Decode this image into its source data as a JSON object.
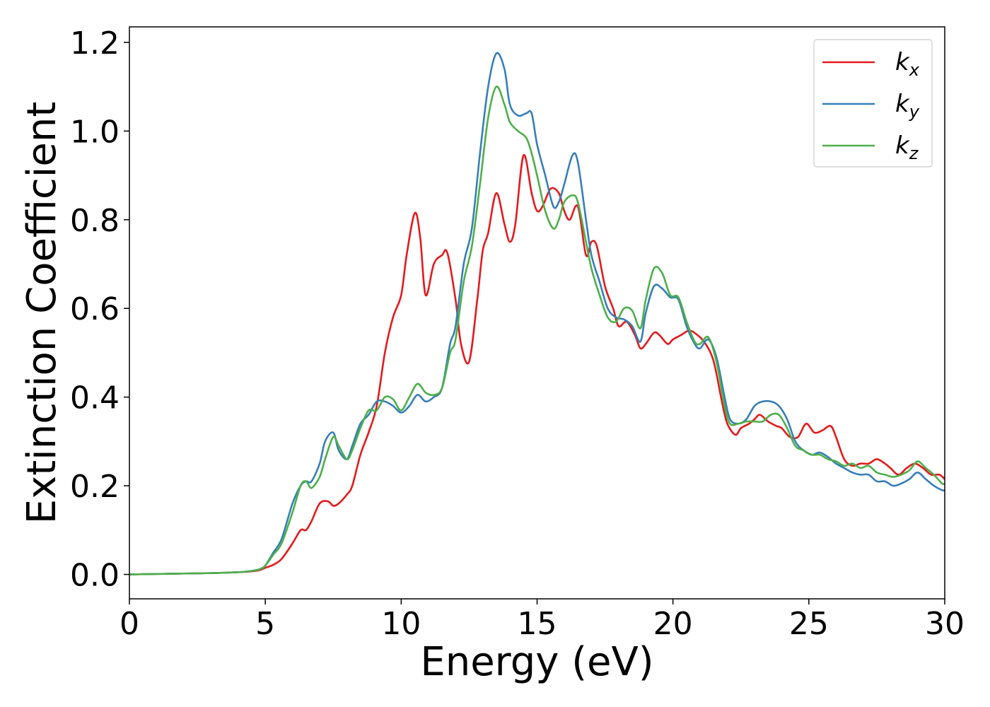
{
  "chart_data": {
    "type": "line",
    "xlabel": "Energy (eV)",
    "ylabel": "Extinction Coefficient",
    "xlim": [
      0,
      30
    ],
    "ylim": [
      -0.055,
      1.235
    ],
    "xticks": [
      "0",
      "5",
      "10",
      "15",
      "20",
      "25",
      "30"
    ],
    "yticks": [
      "0.0",
      "0.2",
      "0.4",
      "0.6",
      "0.8",
      "1.0",
      "1.2"
    ],
    "grid": false,
    "legend_position": "top-right",
    "series": [
      {
        "name": "k",
        "subscript": "x",
        "color": "#e41a1c",
        "x": [
          0,
          1,
          2,
          3,
          4,
          4.5,
          4.8,
          5,
          5.3,
          5.6,
          6,
          6.3,
          6.5,
          6.7,
          7,
          7.3,
          7.5,
          7.7,
          8,
          8.2,
          8.5,
          8.8,
          9.1,
          9.4,
          9.7,
          10,
          10.2,
          10.5,
          10.7,
          10.9,
          11.2,
          11.5,
          11.7,
          12,
          12.2,
          12.5,
          12.8,
          13,
          13.2,
          13.5,
          13.8,
          14,
          14.2,
          14.5,
          14.8,
          15,
          15.2,
          15.5,
          15.8,
          16,
          16.2,
          16.5,
          16.8,
          17,
          17.2,
          17.5,
          17.8,
          18,
          18.3,
          18.6,
          18.8,
          19,
          19.3,
          19.5,
          19.8,
          20,
          20.3,
          20.6,
          20.9,
          21.2,
          21.5,
          21.8,
          22,
          22.3,
          22.5,
          22.8,
          23,
          23.2,
          23.5,
          23.8,
          24,
          24.3,
          24.6,
          24.9,
          25.2,
          25.5,
          25.8,
          26,
          26.3,
          26.6,
          26.9,
          27.2,
          27.5,
          27.8,
          28,
          28.3,
          28.6,
          28.9,
          29.2,
          29.5,
          29.8,
          30
        ],
        "y": [
          0,
          0.001,
          0.002,
          0.003,
          0.005,
          0.007,
          0.01,
          0.015,
          0.022,
          0.035,
          0.07,
          0.1,
          0.1,
          0.12,
          0.16,
          0.165,
          0.155,
          0.16,
          0.18,
          0.2,
          0.27,
          0.32,
          0.38,
          0.5,
          0.58,
          0.63,
          0.72,
          0.815,
          0.76,
          0.63,
          0.7,
          0.72,
          0.725,
          0.62,
          0.52,
          0.48,
          0.62,
          0.73,
          0.77,
          0.86,
          0.79,
          0.75,
          0.79,
          0.945,
          0.86,
          0.82,
          0.83,
          0.87,
          0.86,
          0.82,
          0.8,
          0.83,
          0.72,
          0.75,
          0.74,
          0.65,
          0.6,
          0.56,
          0.57,
          0.54,
          0.51,
          0.52,
          0.545,
          0.54,
          0.52,
          0.53,
          0.54,
          0.55,
          0.54,
          0.52,
          0.48,
          0.39,
          0.34,
          0.315,
          0.33,
          0.34,
          0.35,
          0.36,
          0.345,
          0.335,
          0.33,
          0.31,
          0.31,
          0.34,
          0.32,
          0.325,
          0.335,
          0.31,
          0.26,
          0.245,
          0.25,
          0.25,
          0.26,
          0.25,
          0.24,
          0.225,
          0.24,
          0.25,
          0.24,
          0.225,
          0.225,
          0.215
        ],
        "label_subscript_text": "x"
      },
      {
        "name": "k",
        "subscript": "y",
        "color": "#377eb8",
        "x": [
          0,
          1,
          2,
          3,
          4,
          4.5,
          4.8,
          5,
          5.3,
          5.6,
          6,
          6.3,
          6.5,
          6.7,
          7,
          7.2,
          7.5,
          7.7,
          8,
          8.2,
          8.5,
          8.8,
          9.1,
          9.4,
          9.7,
          10,
          10.3,
          10.6,
          10.9,
          11.2,
          11.5,
          11.8,
          12,
          12.3,
          12.6,
          12.9,
          13.2,
          13.5,
          13.8,
          14,
          14.3,
          14.6,
          14.8,
          15,
          15.3,
          15.6,
          15.8,
          16,
          16.3,
          16.5,
          16.8,
          17,
          17.3,
          17.6,
          17.9,
          18.2,
          18.5,
          18.8,
          19,
          19.3,
          19.6,
          19.9,
          20.2,
          20.5,
          20.8,
          21,
          21.3,
          21.6,
          21.9,
          22.1,
          22.4,
          22.7,
          23,
          23.3,
          23.6,
          23.9,
          24.2,
          24.5,
          24.8,
          25.1,
          25.4,
          25.7,
          26,
          26.3,
          26.6,
          26.9,
          27.2,
          27.5,
          27.8,
          28.1,
          28.4,
          28.7,
          29,
          29.3,
          29.6,
          29.9,
          30
        ],
        "y": [
          0,
          0.001,
          0.002,
          0.003,
          0.005,
          0.008,
          0.012,
          0.02,
          0.05,
          0.08,
          0.16,
          0.2,
          0.21,
          0.21,
          0.25,
          0.3,
          0.32,
          0.28,
          0.26,
          0.29,
          0.34,
          0.36,
          0.39,
          0.39,
          0.38,
          0.365,
          0.38,
          0.405,
          0.39,
          0.4,
          0.42,
          0.52,
          0.56,
          0.7,
          0.78,
          0.95,
          1.1,
          1.175,
          1.14,
          1.06,
          1.035,
          1.04,
          1.04,
          0.97,
          0.9,
          0.83,
          0.84,
          0.88,
          0.945,
          0.93,
          0.8,
          0.72,
          0.66,
          0.6,
          0.58,
          0.575,
          0.56,
          0.525,
          0.59,
          0.65,
          0.645,
          0.625,
          0.62,
          0.56,
          0.52,
          0.51,
          0.53,
          0.49,
          0.4,
          0.35,
          0.34,
          0.35,
          0.38,
          0.39,
          0.39,
          0.38,
          0.35,
          0.3,
          0.28,
          0.27,
          0.275,
          0.265,
          0.25,
          0.24,
          0.23,
          0.225,
          0.225,
          0.21,
          0.21,
          0.2,
          0.205,
          0.215,
          0.23,
          0.215,
          0.2,
          0.19,
          0.19
        ]
      },
      {
        "name": "k",
        "subscript": "z",
        "color": "#4daf4a",
        "x": [
          0,
          1,
          2,
          3,
          4,
          4.5,
          4.8,
          5,
          5.3,
          5.6,
          6,
          6.3,
          6.5,
          6.7,
          7,
          7.2,
          7.5,
          7.7,
          8,
          8.2,
          8.5,
          8.8,
          9.1,
          9.4,
          9.7,
          10,
          10.3,
          10.6,
          10.9,
          11.2,
          11.5,
          11.8,
          12,
          12.3,
          12.6,
          12.9,
          13.2,
          13.5,
          13.8,
          14,
          14.3,
          14.6,
          14.8,
          15,
          15.3,
          15.6,
          15.8,
          16,
          16.3,
          16.5,
          16.8,
          17,
          17.3,
          17.6,
          17.9,
          18.2,
          18.5,
          18.8,
          19,
          19.3,
          19.6,
          19.9,
          20.2,
          20.5,
          20.8,
          21,
          21.3,
          21.6,
          21.9,
          22.1,
          22.4,
          22.7,
          23,
          23.3,
          23.6,
          23.9,
          24.2,
          24.5,
          24.8,
          25.1,
          25.4,
          25.7,
          26,
          26.3,
          26.6,
          26.9,
          27.2,
          27.5,
          27.8,
          28.1,
          28.4,
          28.7,
          29,
          29.3,
          29.6,
          29.9,
          30
        ],
        "y": [
          0,
          0.001,
          0.002,
          0.003,
          0.005,
          0.008,
          0.012,
          0.02,
          0.045,
          0.07,
          0.14,
          0.2,
          0.21,
          0.195,
          0.22,
          0.26,
          0.31,
          0.29,
          0.26,
          0.28,
          0.33,
          0.37,
          0.37,
          0.4,
          0.395,
          0.37,
          0.4,
          0.43,
          0.41,
          0.405,
          0.42,
          0.5,
          0.53,
          0.66,
          0.74,
          0.88,
          1.03,
          1.1,
          1.06,
          1.02,
          1.0,
          0.985,
          0.95,
          0.9,
          0.82,
          0.78,
          0.8,
          0.84,
          0.855,
          0.84,
          0.75,
          0.69,
          0.63,
          0.58,
          0.57,
          0.6,
          0.595,
          0.555,
          0.62,
          0.69,
          0.68,
          0.63,
          0.625,
          0.57,
          0.525,
          0.52,
          0.535,
          0.48,
          0.38,
          0.34,
          0.34,
          0.345,
          0.345,
          0.345,
          0.36,
          0.36,
          0.33,
          0.29,
          0.28,
          0.27,
          0.27,
          0.26,
          0.255,
          0.245,
          0.25,
          0.24,
          0.245,
          0.23,
          0.225,
          0.22,
          0.225,
          0.235,
          0.255,
          0.24,
          0.225,
          0.205,
          0.205
        ]
      }
    ]
  }
}
